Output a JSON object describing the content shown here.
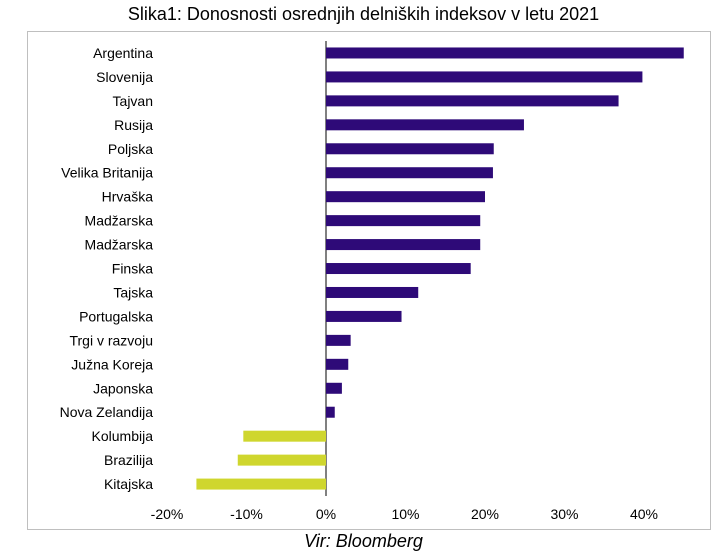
{
  "chart_data": {
    "type": "bar",
    "orientation": "horizontal",
    "title": "Slika1: Donosnosti osrednjih delniških indeksov v letu 2021",
    "source": "Vir: Bloomberg",
    "categories": [
      "Argentina",
      "Slovenija",
      "Tajvan",
      "Rusija",
      "Poljska",
      "Velika Britanija",
      "Hrvaška",
      "Madžarska",
      "Madžarska",
      "Finska",
      "Tajska",
      "Portugalska",
      "Trgi v razvoju",
      "Južna Koreja",
      "Japonska",
      "Nova Zelandija",
      "Kolumbija",
      "Brazilija",
      "Kitajska"
    ],
    "values": [
      45,
      39.8,
      36.8,
      24.9,
      21.1,
      21.0,
      20.0,
      19.4,
      19.4,
      18.2,
      11.6,
      9.5,
      3.1,
      2.8,
      2.0,
      1.1,
      -10.4,
      -11.1,
      -16.3
    ],
    "xlim": [
      -20,
      40
    ],
    "xticks": [
      -20,
      -10,
      0,
      10,
      20,
      30,
      40
    ],
    "xtick_labels": [
      "-20%",
      "-10%",
      "0%",
      "10%",
      "20%",
      "30%",
      "40%"
    ],
    "grid": false,
    "colors": {
      "positive": "#2e0a78",
      "negative": "#cfd62e"
    }
  }
}
